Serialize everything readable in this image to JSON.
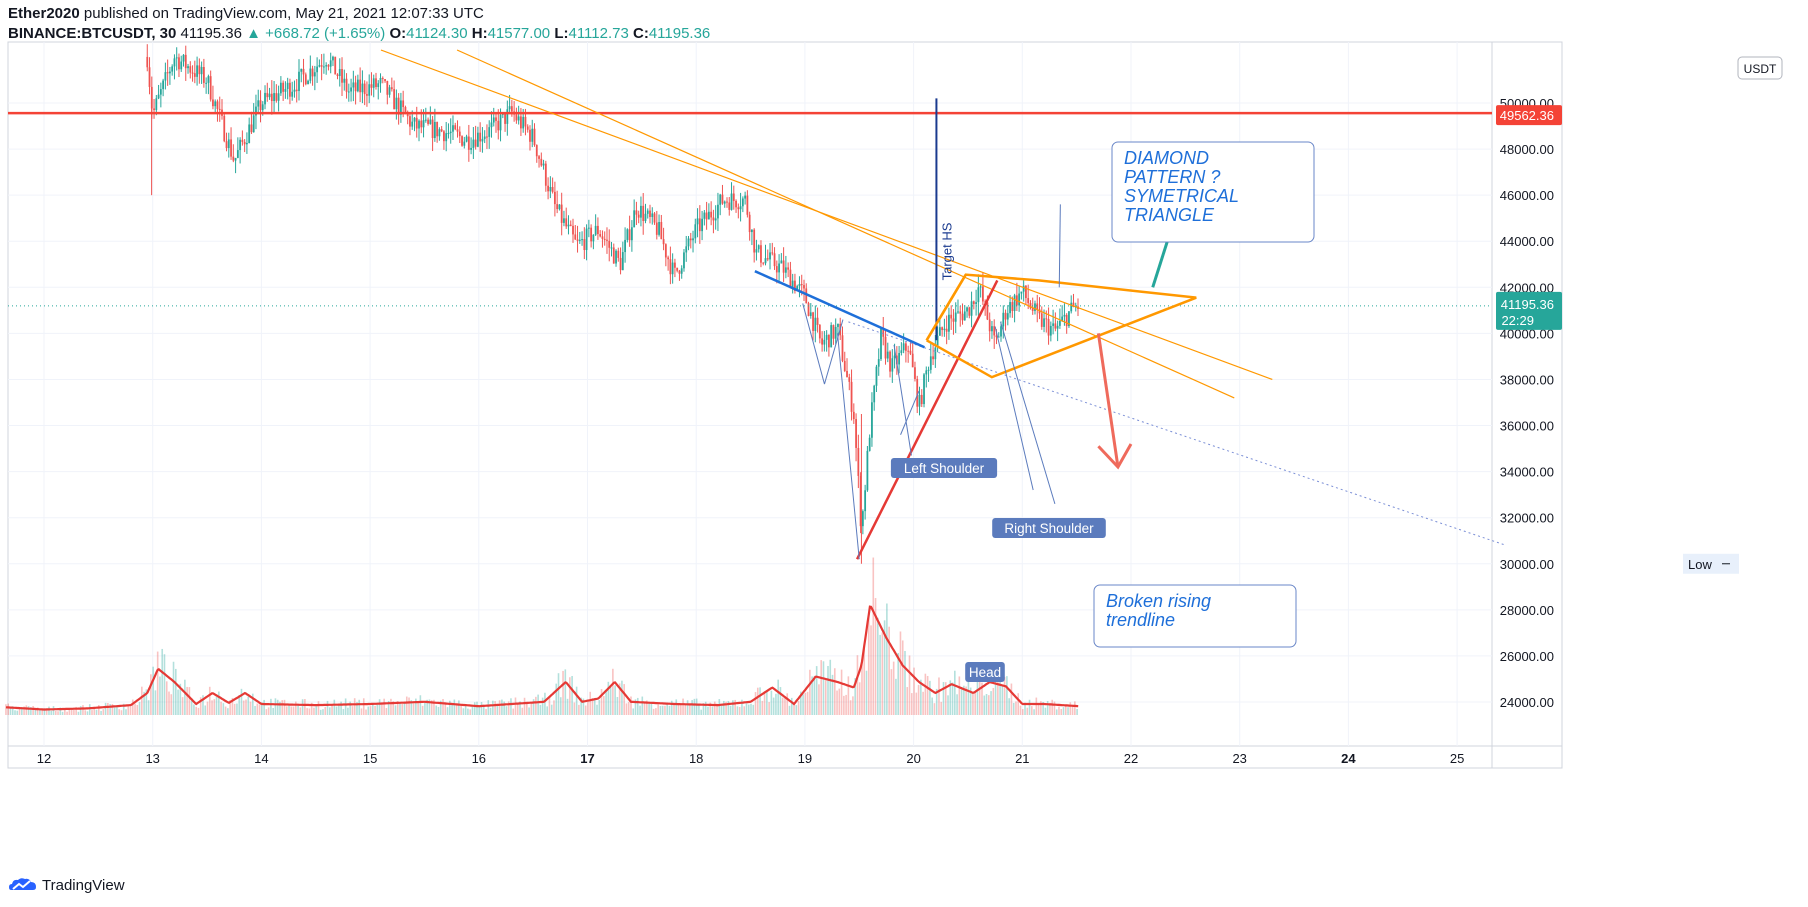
{
  "header": {
    "author": "Ether2020",
    "published": "published on TradingView.com, May 21, 2021 12:07:33 UTC",
    "symbol": "BINANCE:BTCUSDT, 30",
    "last": "41195.36",
    "change": "▲ +668.72 (+1.65%)",
    "o_label": "O:",
    "o": "41124.30",
    "h_label": "H:",
    "h": "41577.00",
    "l_label": "L:",
    "l": "41112.73",
    "c_label": "C:",
    "c": "41195.36"
  },
  "footer": {
    "brand": "TradingView"
  },
  "colors": {
    "up": "#26a69a",
    "down": "#ef5350",
    "volume_ma": "#e53935",
    "resistance": "#f44336",
    "channel": "#ff9800",
    "trendline_blue": "#1e6fd9",
    "target_line": "#1a3a8f",
    "annotation_bg": "#5b7bbd",
    "price_badge": "#26a69a"
  },
  "chart_data": {
    "type": "candlestick",
    "currency_badge": "USDT",
    "x_ticks": [
      "12",
      "13",
      "14",
      "15",
      "16",
      "17",
      "18",
      "19",
      "20",
      "21",
      "22",
      "23",
      "24",
      "25"
    ],
    "bold_x_ticks": [
      "17",
      "24"
    ],
    "y_ticks": [
      "24000.00",
      "26000.00",
      "28000.00",
      "30000.00",
      "32000.00",
      "34000.00",
      "36000.00",
      "38000.00",
      "40000.00",
      "42000.00",
      "44000.00",
      "46000.00",
      "48000.00",
      "50000.00"
    ],
    "ylim": [
      23000,
      52500
    ],
    "xlim": [
      11.65,
      25.9
    ],
    "resistance_level": 49562.36,
    "resistance_label": "49562.36",
    "current_price": 41195.36,
    "current_price_label": "41195.36",
    "countdown": "22:29",
    "low_label": "Low",
    "low_value": "30000.00",
    "price_path": [
      [
        12.95,
        52000
      ],
      [
        13.0,
        49500
      ],
      [
        13.2,
        52000
      ],
      [
        13.5,
        51000
      ],
      [
        13.75,
        47500
      ],
      [
        14.0,
        50000
      ],
      [
        14.3,
        50800
      ],
      [
        14.6,
        52000
      ],
      [
        14.8,
        50500
      ],
      [
        15.1,
        50800
      ],
      [
        15.4,
        49000
      ],
      [
        15.65,
        48800
      ],
      [
        15.9,
        48400
      ],
      [
        16.1,
        48800
      ],
      [
        16.3,
        49600
      ],
      [
        16.5,
        48500
      ],
      [
        16.7,
        45500
      ],
      [
        16.9,
        43800
      ],
      [
        17.1,
        44500
      ],
      [
        17.3,
        43000
      ],
      [
        17.45,
        45500
      ],
      [
        17.65,
        44500
      ],
      [
        17.8,
        42500
      ],
      [
        18.0,
        44500
      ],
      [
        18.25,
        45800
      ],
      [
        18.45,
        45800
      ],
      [
        18.55,
        43500
      ],
      [
        18.8,
        42800
      ],
      [
        19.0,
        41600
      ],
      [
        19.15,
        39500
      ],
      [
        19.3,
        40200
      ],
      [
        19.45,
        36500
      ],
      [
        19.52,
        31500
      ],
      [
        19.6,
        36000
      ],
      [
        19.7,
        39800
      ],
      [
        19.8,
        38500
      ],
      [
        19.95,
        39500
      ],
      [
        20.05,
        36800
      ],
      [
        20.15,
        39000
      ],
      [
        20.3,
        40500
      ],
      [
        20.5,
        41000
      ],
      [
        20.6,
        42000
      ],
      [
        20.75,
        39500
      ],
      [
        20.85,
        41000
      ],
      [
        21.0,
        41800
      ],
      [
        21.15,
        40600
      ],
      [
        21.3,
        40100
      ],
      [
        21.45,
        41000
      ],
      [
        21.52,
        41200
      ]
    ],
    "volume": {
      "max": 1.0,
      "ma": [
        [
          11.65,
          0.07
        ],
        [
          12.0,
          0.05
        ],
        [
          12.4,
          0.06
        ],
        [
          12.8,
          0.09
        ],
        [
          12.95,
          0.2
        ],
        [
          13.05,
          0.42
        ],
        [
          13.2,
          0.3
        ],
        [
          13.4,
          0.1
        ],
        [
          13.55,
          0.2
        ],
        [
          13.7,
          0.11
        ],
        [
          13.85,
          0.2
        ],
        [
          14.0,
          0.1
        ],
        [
          14.5,
          0.09
        ],
        [
          15.0,
          0.1
        ],
        [
          15.5,
          0.12
        ],
        [
          16.0,
          0.08
        ],
        [
          16.3,
          0.1
        ],
        [
          16.6,
          0.12
        ],
        [
          16.8,
          0.3
        ],
        [
          16.95,
          0.12
        ],
        [
          17.1,
          0.15
        ],
        [
          17.25,
          0.3
        ],
        [
          17.4,
          0.12
        ],
        [
          17.8,
          0.1
        ],
        [
          18.2,
          0.09
        ],
        [
          18.5,
          0.12
        ],
        [
          18.7,
          0.25
        ],
        [
          18.9,
          0.1
        ],
        [
          19.1,
          0.35
        ],
        [
          19.3,
          0.3
        ],
        [
          19.45,
          0.25
        ],
        [
          19.52,
          0.45
        ],
        [
          19.6,
          1.0
        ],
        [
          19.75,
          0.7
        ],
        [
          19.9,
          0.45
        ],
        [
          20.05,
          0.3
        ],
        [
          20.2,
          0.2
        ],
        [
          20.35,
          0.28
        ],
        [
          20.55,
          0.2
        ],
        [
          20.7,
          0.3
        ],
        [
          20.85,
          0.26
        ],
        [
          21.0,
          0.1
        ],
        [
          21.2,
          0.1
        ],
        [
          21.52,
          0.08
        ]
      ]
    },
    "annotations": {
      "left_shoulder": "Left Shoulder",
      "right_shoulder": "Right Shoulder",
      "head": "Head",
      "target": "Target HS",
      "diamond": [
        "DIAMOND",
        "PATTERN ?",
        "SYMETRICAL",
        "TRIANGLE"
      ],
      "broken": [
        "Broken rising",
        "trendline"
      ]
    }
  }
}
